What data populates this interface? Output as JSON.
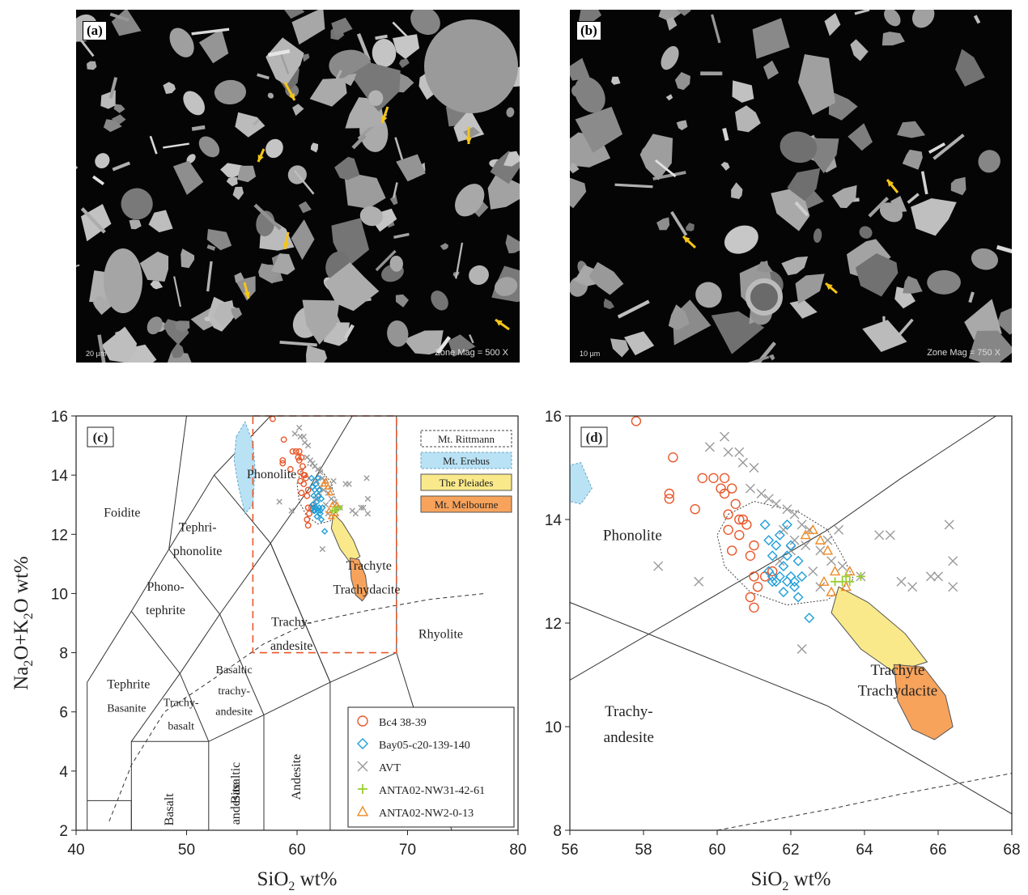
{
  "sem_panels": [
    {
      "label": "(a)",
      "scale": "20 µm",
      "mag": "Zone Mag =    500 X"
    },
    {
      "label": "(b)",
      "scale": "10 µm",
      "mag": "Zone Mag =    750 X"
    }
  ],
  "colors": {
    "bc4": "#e8572a",
    "bay05": "#1f9ed8",
    "avt": "#9a9a9a",
    "nw31": "#9acd32",
    "nw2": "#f08a24",
    "rittmann": "#555555",
    "erebus": "#b9e2f5",
    "pleiades": "#f9e98a",
    "melbourne": "#f7a35c",
    "arrow": "#f5c518",
    "dashbox": "#e8572a"
  },
  "chart_data": [
    {
      "type": "scatter",
      "panel": "(c)",
      "xlabel": "SiO2 wt%",
      "ylabel": "Na2O+K2O wt%",
      "xlim": [
        40,
        80
      ],
      "ylim": [
        2,
        16
      ],
      "xticks": [
        40,
        50,
        60,
        70,
        80
      ],
      "yticks": [
        2,
        4,
        6,
        8,
        10,
        12,
        14,
        16
      ],
      "field_labels": [
        "Foidite",
        "Phonolite",
        "Tephri-",
        "phonolite",
        "Phono-",
        "tephrite",
        "Trachy-",
        "andesite",
        "Tephrite",
        "Basanite",
        "Basaltic",
        "trachy-",
        "andesite",
        "Trachy-",
        "basalt",
        "Basalt",
        "Basaltic",
        "andesite",
        "Andesite",
        "Rhyolite",
        "Trachyte",
        "Trachydacite"
      ],
      "region_legend": [
        "Mt. Rittmann",
        "Mt. Erebus",
        "The Pleiades",
        "Mt. Melbourne"
      ],
      "series": [
        {
          "name": "Bc4 38-39",
          "marker": "circle"
        },
        {
          "name": "Bay05-c20-139-140",
          "marker": "diamond"
        },
        {
          "name": "AVT",
          "marker": "x"
        },
        {
          "name": "ANTA02-NW31-42-61",
          "marker": "plus"
        },
        {
          "name": "ANTA02-NW2-0-13",
          "marker": "triangle"
        }
      ]
    },
    {
      "type": "scatter",
      "panel": "(d)",
      "xlabel": "SiO2 wt%",
      "xlim": [
        56,
        68
      ],
      "ylim": [
        8,
        16
      ],
      "xticks": [
        56,
        58,
        60,
        62,
        64,
        66,
        68
      ],
      "yticks": [
        8,
        10,
        12,
        14,
        16
      ],
      "field_labels": [
        "Phonolite",
        "Trachyte",
        "Trachydacite",
        "Trachy-",
        "andesite"
      ],
      "series_points": {
        "Bc4 38-39": [
          [
            57.8,
            15.9
          ],
          [
            58.8,
            15.2
          ],
          [
            58.7,
            14.5
          ],
          [
            58.7,
            14.4
          ],
          [
            59.4,
            14.2
          ],
          [
            59.6,
            14.8
          ],
          [
            59.9,
            14.8
          ],
          [
            60.1,
            14.6
          ],
          [
            60.2,
            14.8
          ],
          [
            60.2,
            14.5
          ],
          [
            60.4,
            14.6
          ],
          [
            60.5,
            14.3
          ],
          [
            60.3,
            14.1
          ],
          [
            60.6,
            14.0
          ],
          [
            60.7,
            14.0
          ],
          [
            60.8,
            13.9
          ],
          [
            60.6,
            13.7
          ],
          [
            60.3,
            13.8
          ],
          [
            60.4,
            13.4
          ],
          [
            61.0,
            13.5
          ],
          [
            60.9,
            13.3
          ],
          [
            61.0,
            12.9
          ],
          [
            61.1,
            12.7
          ],
          [
            60.9,
            12.5
          ],
          [
            61.0,
            12.3
          ],
          [
            61.5,
            13.0
          ],
          [
            61.3,
            12.9
          ]
        ],
        "Bay05-c20-139-140": [
          [
            61.3,
            13.9
          ],
          [
            61.4,
            13.6
          ],
          [
            61.5,
            13.3
          ],
          [
            61.4,
            13.0
          ],
          [
            61.5,
            12.9
          ],
          [
            61.6,
            12.8
          ],
          [
            61.7,
            12.9
          ],
          [
            61.8,
            13.1
          ],
          [
            61.9,
            13.3
          ],
          [
            62.0,
            13.5
          ],
          [
            62.0,
            12.9
          ],
          [
            61.9,
            12.8
          ],
          [
            61.8,
            12.6
          ],
          [
            62.1,
            12.8
          ],
          [
            62.2,
            13.2
          ],
          [
            62.3,
            12.9
          ],
          [
            61.6,
            13.5
          ],
          [
            61.7,
            13.7
          ],
          [
            62.1,
            12.7
          ],
          [
            62.2,
            12.5
          ],
          [
            62.5,
            12.1
          ],
          [
            61.9,
            13.9
          ],
          [
            61.5,
            12.8
          ]
        ],
        "AVT": [
          [
            59.8,
            15.4
          ],
          [
            60.2,
            15.6
          ],
          [
            60.3,
            15.3
          ],
          [
            60.6,
            15.3
          ],
          [
            60.7,
            15.1
          ],
          [
            61.0,
            15.0
          ],
          [
            60.9,
            14.6
          ],
          [
            61.2,
            14.5
          ],
          [
            61.4,
            14.4
          ],
          [
            61.6,
            14.3
          ],
          [
            61.9,
            14.2
          ],
          [
            62.1,
            14.1
          ],
          [
            62.3,
            13.9
          ],
          [
            62.5,
            13.8
          ],
          [
            62.1,
            13.6
          ],
          [
            61.8,
            13.8
          ],
          [
            62.0,
            13.4
          ],
          [
            61.7,
            13.2
          ],
          [
            62.4,
            13.5
          ],
          [
            62.8,
            13.4
          ],
          [
            63.1,
            13.2
          ],
          [
            62.6,
            13.0
          ],
          [
            63.0,
            13.6
          ],
          [
            63.4,
            13.1
          ],
          [
            63.9,
            12.9
          ],
          [
            64.4,
            13.7
          ],
          [
            64.7,
            13.7
          ],
          [
            65.0,
            12.8
          ],
          [
            65.3,
            12.7
          ],
          [
            65.8,
            12.9
          ],
          [
            66.0,
            12.9
          ],
          [
            66.3,
            13.9
          ],
          [
            66.4,
            13.2
          ],
          [
            66.4,
            12.7
          ],
          [
            58.4,
            13.1
          ],
          [
            59.5,
            12.8
          ],
          [
            62.3,
            11.5
          ],
          [
            62.8,
            12.7
          ],
          [
            63.3,
            13.8
          ]
        ],
        "ANTA02-NW31-42-61": [
          [
            63.2,
            12.8
          ],
          [
            63.4,
            12.8
          ],
          [
            63.5,
            12.9
          ],
          [
            63.6,
            12.8
          ],
          [
            63.9,
            12.9
          ]
        ],
        "ANTA02-NW2-0-13": [
          [
            62.6,
            13.8
          ],
          [
            62.8,
            13.6
          ],
          [
            63.0,
            13.4
          ],
          [
            63.2,
            13.0
          ],
          [
            62.9,
            12.8
          ],
          [
            63.1,
            12.6
          ],
          [
            63.5,
            12.7
          ],
          [
            63.6,
            13.0
          ],
          [
            62.4,
            13.7
          ]
        ]
      }
    }
  ]
}
